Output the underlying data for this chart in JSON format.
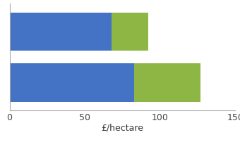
{
  "bars": [
    {
      "blue": 68,
      "green": 24
    },
    {
      "blue": 83,
      "green": 44
    }
  ],
  "bar_positions": [
    1,
    0
  ],
  "blue_color": "#4472C4",
  "green_color": "#8DB645",
  "xlim": [
    0,
    150
  ],
  "xticks": [
    0,
    50,
    100,
    150
  ],
  "xlabel": "£/hectare",
  "bar_height": 0.75,
  "ylim": [
    -0.55,
    1.55
  ],
  "background_color": "#ffffff",
  "spine_color": "#aaaaaa"
}
